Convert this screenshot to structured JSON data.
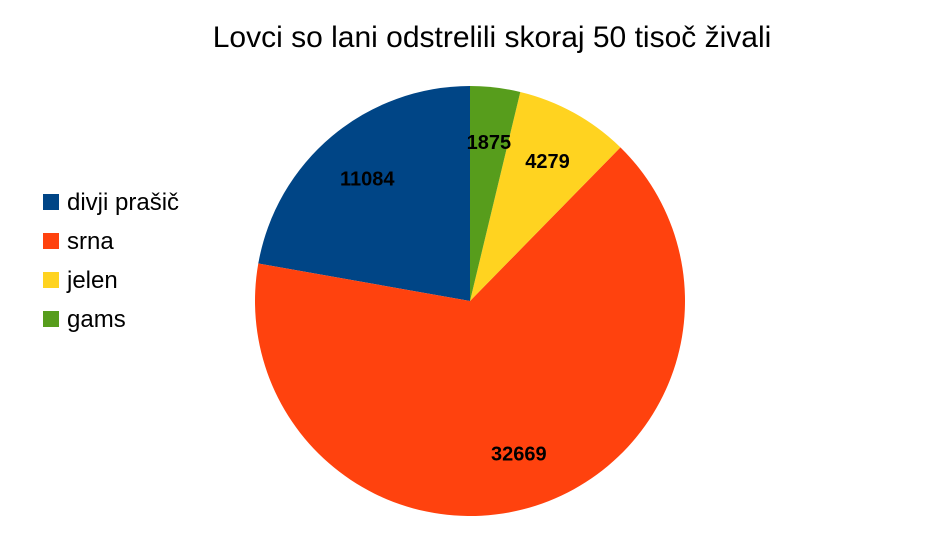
{
  "chart_data": {
    "type": "pie",
    "title": "Lovci so lani odstrelili skoraj 50 tisoč živali",
    "categories": [
      "divji prašič",
      "srna",
      "jelen",
      "gams"
    ],
    "values": [
      11084,
      32669,
      4279,
      1875
    ],
    "colors": [
      "#004586",
      "#ff420e",
      "#ffd320",
      "#579d1c"
    ],
    "legend_position": "left",
    "data_labels": true,
    "start_angle": "12 o'clock",
    "direction": "counterclockwise"
  }
}
